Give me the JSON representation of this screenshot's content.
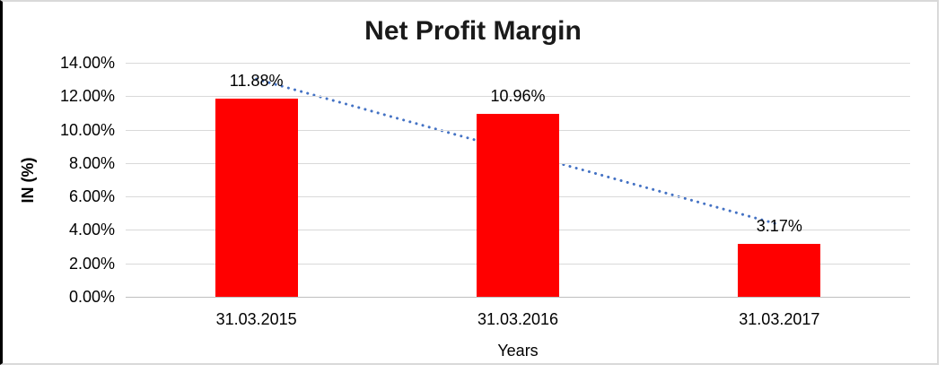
{
  "chart_data": {
    "type": "bar",
    "title": "Net Profit Margin",
    "categories": [
      "31.03.2015",
      "31.03.2016",
      "31.03.2017"
    ],
    "values": [
      11.88,
      10.96,
      3.17
    ],
    "data_labels": [
      "11.88%",
      "10.96%",
      "3.17%"
    ],
    "xlabel": "Years",
    "ylabel": "IN (%)",
    "ylim": [
      0,
      14
    ],
    "y_tick_step": 2,
    "y_tick_labels": [
      "0.00%",
      "2.00%",
      "4.00%",
      "6.00%",
      "8.00%",
      "10.00%",
      "12.00%",
      "14.00%"
    ],
    "grid": true,
    "legend": "none",
    "bar_color": "#ff0000",
    "gridline_color": "#d9d9d9",
    "trendline": {
      "type": "linear",
      "style": "dotted-round",
      "color": "#4472c4"
    }
  }
}
